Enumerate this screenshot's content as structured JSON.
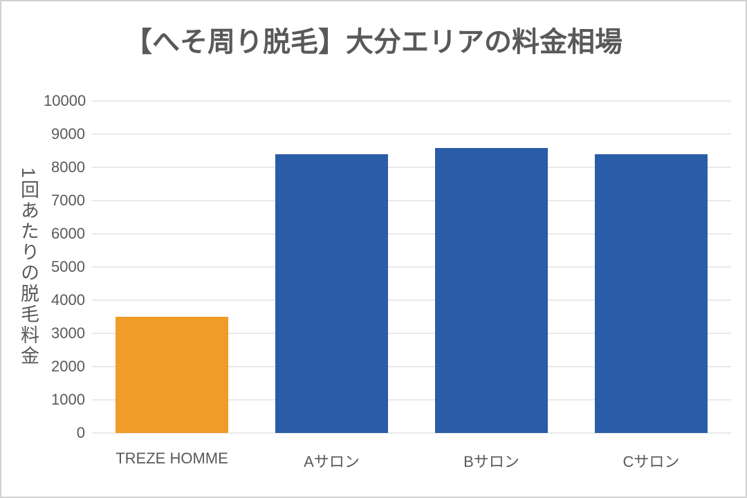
{
  "page": {
    "background": "#FFFFFF",
    "border_color": "#CFCFCF"
  },
  "chart_data": {
    "type": "bar",
    "title": "【へそ周り脱毛】大分エリアの料金相場",
    "categories": [
      "TREZE HOMME",
      "Aサロン",
      "Bサロン",
      "Cサロン"
    ],
    "values": [
      3500,
      8400,
      8580,
      8400
    ],
    "bar_colors": [
      "#F09C28",
      "#2A5CA8",
      "#2A5CA8",
      "#2A5CA8"
    ],
    "xlabel": "",
    "ylabel": "1回あたりの脱毛料金",
    "ylim": [
      0,
      10000
    ],
    "yticks": [
      0,
      1000,
      2000,
      3000,
      4000,
      5000,
      6000,
      7000,
      8000,
      9000,
      10000
    ],
    "grid": "horizontal",
    "legend": "none",
    "colors": {
      "title_text": "#595959",
      "axis_text": "#595959",
      "gridline": "#E9E9E9",
      "highlight_bar": "#F09C28",
      "default_bar": "#2A5CA8"
    }
  }
}
